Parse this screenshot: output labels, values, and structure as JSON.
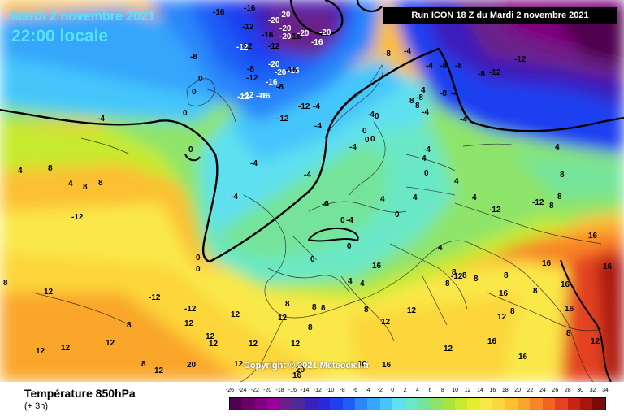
{
  "header": {
    "date": "Mardi 2 novembre 2021",
    "time": "22:00 locale",
    "run": "Run ICON 18 Z du Mardi 2 novembre 2021"
  },
  "copyright": "Copyright © 2021 Meteociel.fr",
  "footer": {
    "title": "Température 850hPa",
    "subtitle": "(+ 3h)"
  },
  "scale": {
    "labels": [
      "-26",
      "-24",
      "-22",
      "-20",
      "-18",
      "-16",
      "-14",
      "-12",
      "-10",
      "-8",
      "-6",
      "-4",
      "-2",
      "0",
      "2",
      "4",
      "6",
      "8",
      "10",
      "12",
      "14",
      "16",
      "18",
      "20",
      "22",
      "24",
      "26",
      "28",
      "30",
      "32",
      "34"
    ],
    "colors": [
      "#500050",
      "#6a006a",
      "#800080",
      "#9a009a",
      "#6a208a",
      "#4b2b9a",
      "#3a1fbd",
      "#2a2add",
      "#1f40f0",
      "#1e5ef6",
      "#2a86fa",
      "#34a6fb",
      "#44c6fb",
      "#5ee0f0",
      "#6be8c6",
      "#74e49a",
      "#8ee46a",
      "#a6e63e",
      "#c6ea2e",
      "#e4ee2e",
      "#fae84a",
      "#fcd63a",
      "#fcc030",
      "#faa62a",
      "#f88626",
      "#f06422",
      "#e44220",
      "#c82416",
      "#a8140e",
      "#7a0a0a"
    ]
  },
  "map": {
    "labels": [
      {
        "t": "-16",
        "c": "#000"
      },
      {
        "t": "-16",
        "c": "#000"
      },
      {
        "t": "-20",
        "c": "#fff"
      },
      {
        "t": "-20",
        "c": "#fff"
      },
      {
        "t": "-12",
        "c": "#000"
      },
      {
        "t": "-12",
        "c": "#000"
      },
      {
        "t": "-16",
        "c": "#000"
      },
      {
        "t": "-16",
        "c": "#000"
      },
      {
        "t": "-20",
        "c": "#fff"
      },
      {
        "t": "-20",
        "c": "#fff"
      },
      {
        "t": "-20",
        "c": "#fff"
      },
      {
        "t": "-20",
        "c": "#fff"
      },
      {
        "t": "-16",
        "c": "#fff"
      },
      {
        "t": "-16",
        "c": "#fff"
      },
      {
        "t": "-12",
        "c": "#000"
      },
      {
        "t": "-8",
        "c": "#000"
      },
      {
        "t": "-12",
        "c": "#000"
      },
      {
        "t": "-16",
        "c": "#fff"
      },
      {
        "t": "-16",
        "c": "#fff"
      },
      {
        "t": "-20",
        "c": "#fff"
      },
      {
        "t": "-20",
        "c": "#fff"
      },
      {
        "t": "-12",
        "c": "#fff"
      },
      {
        "t": "-16",
        "c": "#fff"
      },
      {
        "t": "-8",
        "c": "#000"
      },
      {
        "t": "-12",
        "c": "#fff"
      },
      {
        "t": "-12",
        "c": "#fff"
      },
      {
        "t": "-8",
        "c": "#000"
      },
      {
        "t": "-8",
        "c": "#000"
      },
      {
        "t": "-12",
        "c": "#000"
      },
      {
        "t": "-12",
        "c": "#000"
      },
      {
        "t": "-12",
        "c": "#000"
      },
      {
        "t": "-4",
        "c": "#000"
      },
      {
        "t": "-4",
        "c": "#000"
      },
      {
        "t": "-8",
        "c": "#000"
      },
      {
        "t": "-8",
        "c": "#000"
      },
      {
        "t": "-4",
        "c": "#000"
      },
      {
        "t": "-8",
        "c": "#000"
      },
      {
        "t": "-12",
        "c": "#000"
      },
      {
        "t": "-16",
        "c": "#000"
      },
      {
        "t": "-8",
        "c": "#000"
      },
      {
        "t": "-4",
        "c": "#000"
      },
      {
        "t": "-4",
        "c": "#000"
      },
      {
        "t": "-4",
        "c": "#000"
      },
      {
        "t": "-4",
        "c": "#000"
      },
      {
        "t": "-12",
        "c": "#000"
      },
      {
        "t": "-8",
        "c": "#000"
      },
      {
        "t": "-12",
        "c": "#000"
      },
      {
        "t": "-4",
        "c": "#000"
      },
      {
        "t": "-4",
        "c": "#000"
      },
      {
        "t": "-4",
        "c": "#000"
      },
      {
        "t": "-4",
        "c": "#000"
      },
      {
        "t": "-4",
        "c": "#000"
      },
      {
        "t": "-4",
        "c": "#000"
      },
      {
        "t": "-4",
        "c": "#000"
      },
      {
        "t": "-4",
        "c": "#000"
      },
      {
        "t": "-4",
        "c": "#000"
      },
      {
        "t": "0",
        "c": "#000"
      },
      {
        "t": "0",
        "c": "#000"
      },
      {
        "t": "0",
        "c": "#000"
      },
      {
        "t": "0",
        "c": "#000"
      },
      {
        "t": "0",
        "c": "#000"
      },
      {
        "t": "0",
        "c": "#000"
      },
      {
        "t": "0",
        "c": "#000"
      },
      {
        "t": "0",
        "c": "#000"
      },
      {
        "t": "0",
        "c": "#000"
      },
      {
        "t": "0",
        "c": "#000"
      },
      {
        "t": "0",
        "c": "#000"
      },
      {
        "t": "0",
        "c": "#000"
      },
      {
        "t": "0",
        "c": "#000"
      },
      {
        "t": "0",
        "c": "#000"
      },
      {
        "t": "0",
        "c": "#000"
      },
      {
        "t": "0",
        "c": "#000"
      },
      {
        "t": "4",
        "c": "#000"
      },
      {
        "t": "4",
        "c": "#000"
      },
      {
        "t": "4",
        "c": "#000"
      },
      {
        "t": "4",
        "c": "#000"
      },
      {
        "t": "4",
        "c": "#000"
      },
      {
        "t": "4",
        "c": "#000"
      },
      {
        "t": "4",
        "c": "#000"
      },
      {
        "t": "4",
        "c": "#000"
      },
      {
        "t": "4",
        "c": "#000"
      },
      {
        "t": "4",
        "c": "#000"
      },
      {
        "t": "4",
        "c": "#000"
      },
      {
        "t": "4",
        "c": "#000"
      },
      {
        "t": "8",
        "c": "#000"
      },
      {
        "t": "8",
        "c": "#000"
      },
      {
        "t": "8",
        "c": "#000"
      },
      {
        "t": "8",
        "c": "#000"
      },
      {
        "t": "8",
        "c": "#000"
      },
      {
        "t": "8",
        "c": "#000"
      },
      {
        "t": "8",
        "c": "#000"
      },
      {
        "t": "8",
        "c": "#000"
      },
      {
        "t": "8",
        "c": "#000"
      },
      {
        "t": "8",
        "c": "#000"
      },
      {
        "t": "8",
        "c": "#000"
      },
      {
        "t": "8",
        "c": "#000"
      },
      {
        "t": "8",
        "c": "#000"
      },
      {
        "t": "8",
        "c": "#000"
      },
      {
        "t": "8",
        "c": "#000"
      },
      {
        "t": "8",
        "c": "#000"
      },
      {
        "t": "8",
        "c": "#000"
      },
      {
        "t": "8",
        "c": "#000"
      },
      {
        "t": "8",
        "c": "#000"
      },
      {
        "t": "8",
        "c": "#000"
      },
      {
        "t": "-12",
        "c": "#000"
      },
      {
        "t": "-12",
        "c": "#000"
      },
      {
        "t": "-12",
        "c": "#000"
      },
      {
        "t": "-12",
        "c": "#000"
      },
      {
        "t": "12",
        "c": "#000"
      },
      {
        "t": "12",
        "c": "#000"
      },
      {
        "t": "12",
        "c": "#000"
      },
      {
        "t": "12",
        "c": "#000"
      },
      {
        "t": "12",
        "c": "#000"
      },
      {
        "t": "12",
        "c": "#000"
      },
      {
        "t": "12",
        "c": "#000"
      },
      {
        "t": "12",
        "c": "#000"
      },
      {
        "t": "12",
        "c": "#000"
      },
      {
        "t": "12",
        "c": "#000"
      },
      {
        "t": "12",
        "c": "#000"
      },
      {
        "t": "12",
        "c": "#000"
      },
      {
        "t": "12",
        "c": "#000"
      },
      {
        "t": "12",
        "c": "#000"
      },
      {
        "t": "12",
        "c": "#000"
      },
      {
        "t": "12",
        "c": "#000"
      },
      {
        "t": "12",
        "c": "#000"
      },
      {
        "t": "16",
        "c": "#000"
      },
      {
        "t": "16",
        "c": "#000"
      },
      {
        "t": "16",
        "c": "#000"
      },
      {
        "t": "16",
        "c": "#000"
      },
      {
        "t": "16",
        "c": "#000"
      },
      {
        "t": "16",
        "c": "#000"
      },
      {
        "t": "16",
        "c": "#000"
      },
      {
        "t": "16",
        "c": "#000"
      },
      {
        "t": "16",
        "c": "#000"
      },
      {
        "t": "16",
        "c": "#000"
      },
      {
        "t": "16",
        "c": "#000"
      },
      {
        "t": "16",
        "c": "#000"
      },
      {
        "t": "20",
        "c": "#000"
      },
      {
        "t": "20",
        "c": "#000"
      },
      {
        "t": "8",
        "c": "#000"
      },
      {
        "t": "8",
        "c": "#000"
      },
      {
        "t": "8",
        "c": "#000"
      },
      {
        "t": "8",
        "c": "#000"
      },
      {
        "t": "12",
        "c": "#000"
      },
      {
        "t": "12",
        "c": "#000"
      },
      {
        "t": "12",
        "c": "#000"
      },
      {
        "t": "12",
        "c": "#000"
      }
    ]
  }
}
